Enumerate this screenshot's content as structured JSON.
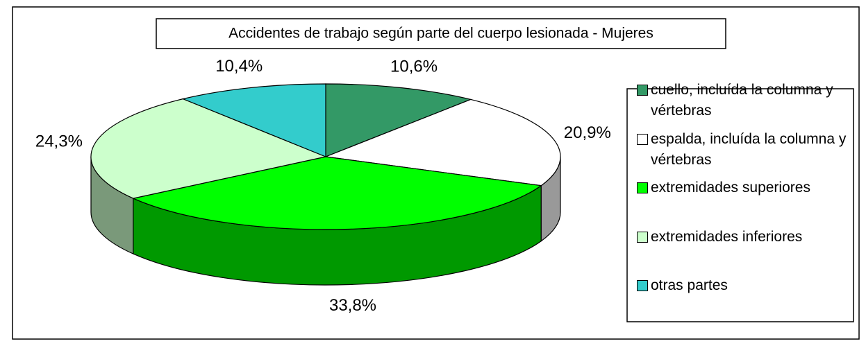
{
  "chart_data": {
    "type": "pie",
    "title": "Accidentes de trabajo según parte del cuerpo lesionada - Mujeres",
    "categories": [
      "cuello, incluída la columna y vértebras",
      "espalda, incluída la columna y vértebras",
      "extremidades superiores",
      "extremidades inferiores",
      "otras partes"
    ],
    "values": [
      10.6,
      20.9,
      33.8,
      24.3,
      10.4
    ],
    "value_labels": [
      "10,6%",
      "20,9%",
      "33,8%",
      "24,3%",
      "10,4%"
    ],
    "colors": [
      "#339966",
      "#ffffff",
      "#00ff00",
      "#ccffcc",
      "#33cccc"
    ],
    "legend": "right"
  }
}
